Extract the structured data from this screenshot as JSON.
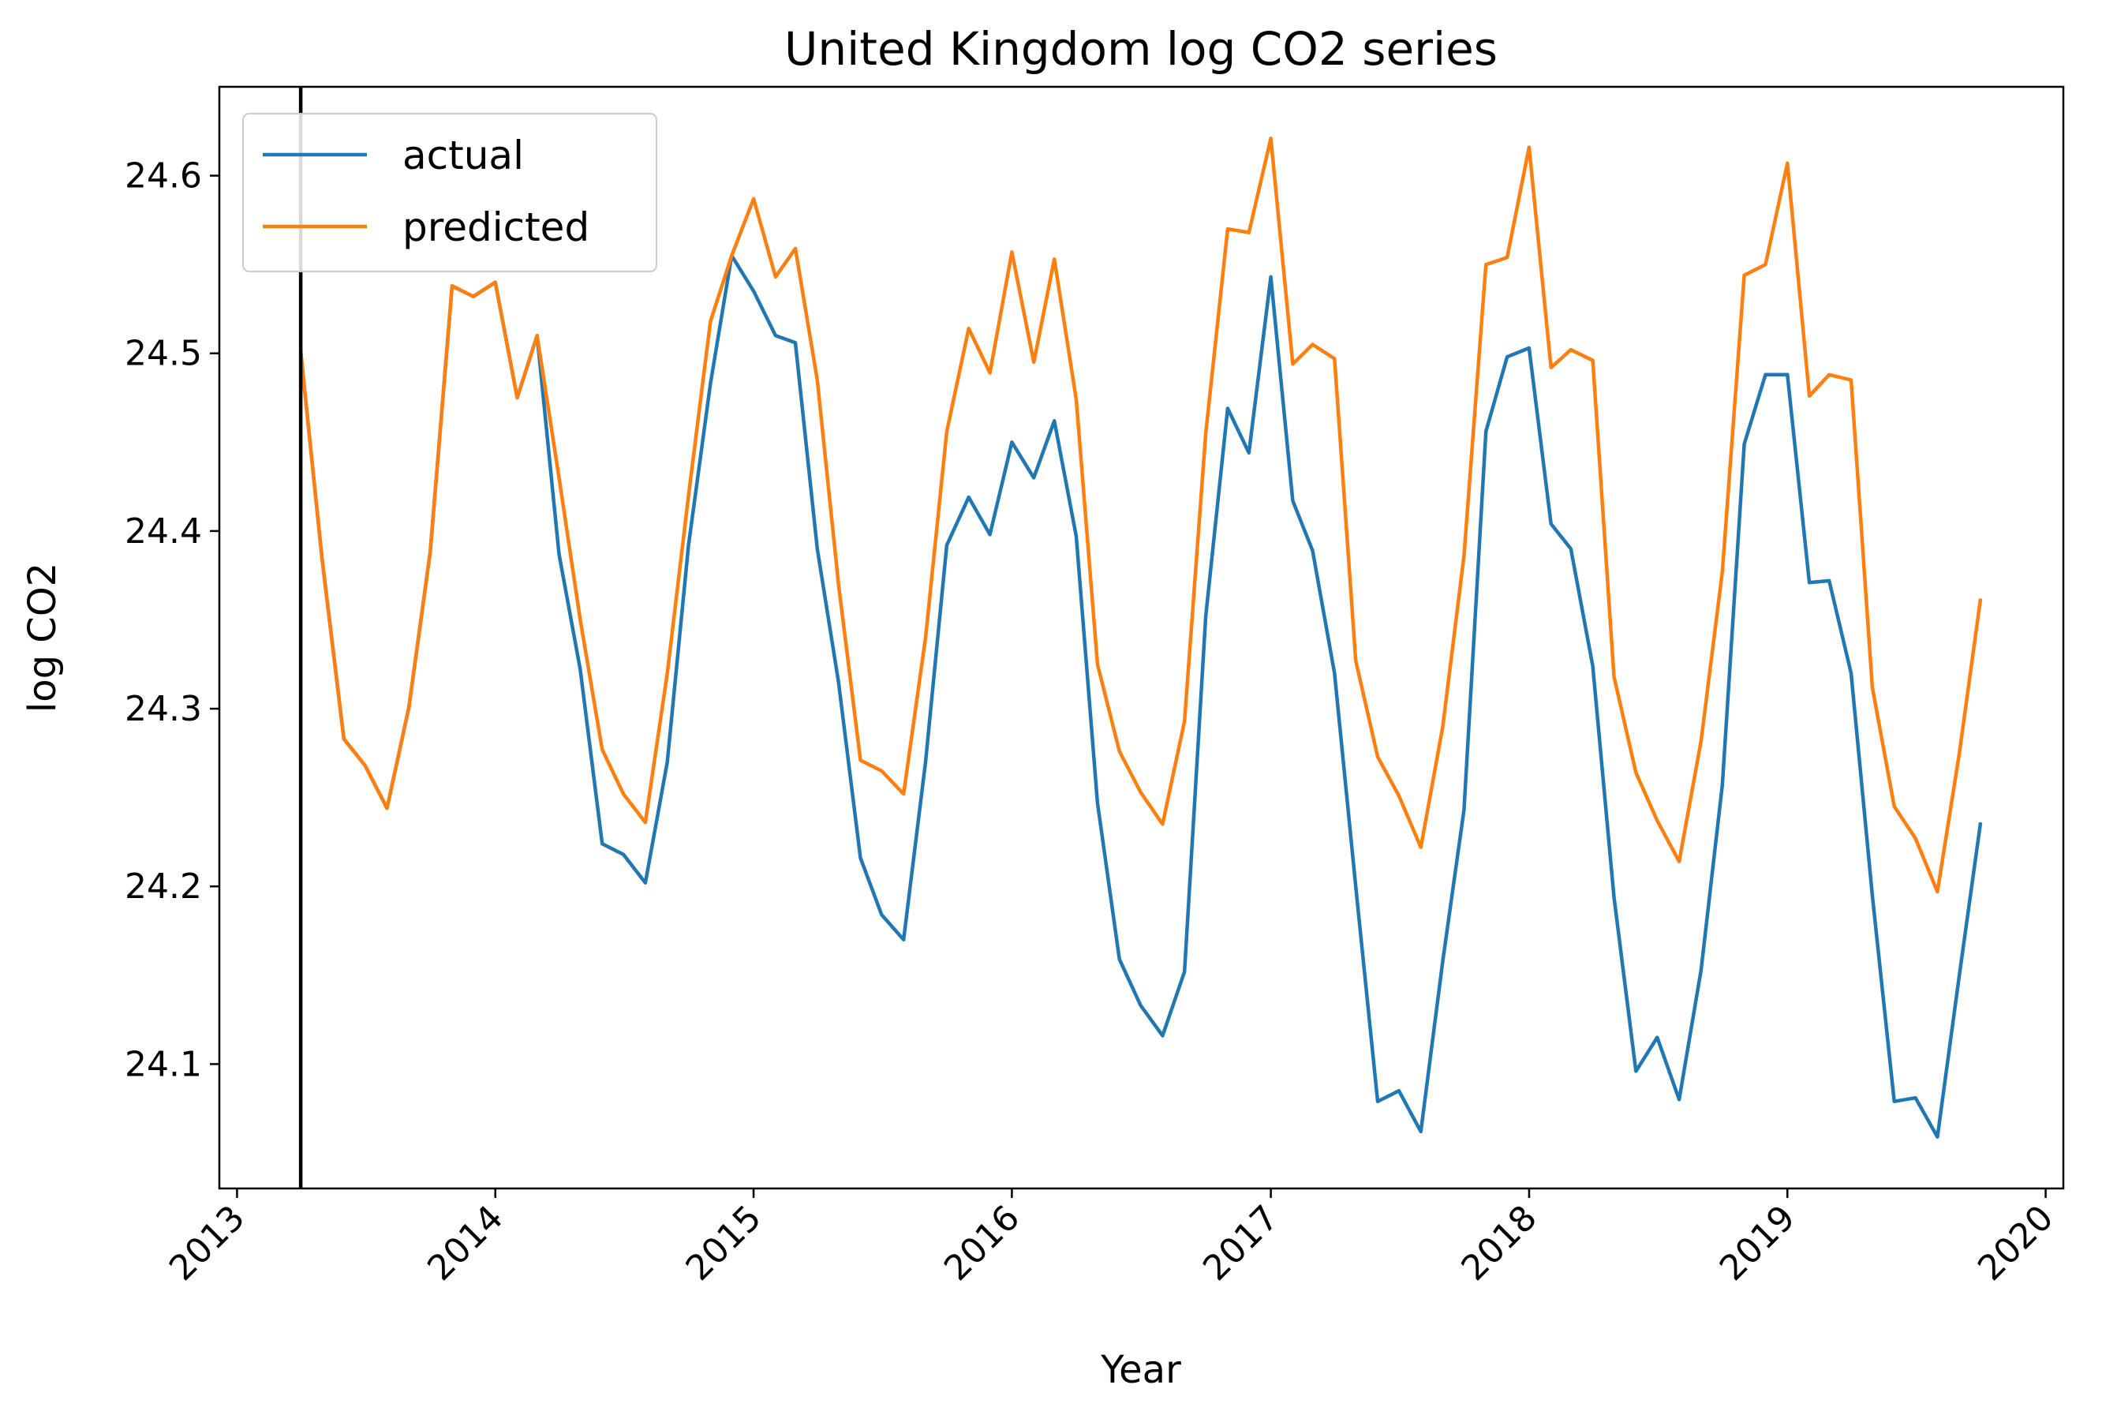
{
  "chart_data": {
    "type": "line",
    "title": "United Kingdom log CO2 series",
    "xlabel": "Year",
    "ylabel": "log CO2",
    "xlim": [
      "2012-12-07",
      "2020-01-26"
    ],
    "ylim": [
      24.03,
      24.65
    ],
    "x_ticks": [
      "2013",
      "2014",
      "2015",
      "2016",
      "2017",
      "2018",
      "2019",
      "2020"
    ],
    "y_ticks": [
      24.1,
      24.2,
      24.3,
      24.4,
      24.5,
      24.6
    ],
    "y_tick_labels": [
      "24.1",
      "24.2",
      "24.3",
      "24.4",
      "24.5",
      "24.6"
    ],
    "vline": "2013-04-01",
    "grid": false,
    "legend": "top-left",
    "x": [
      "2013-04",
      "2013-05",
      "2013-06",
      "2013-07",
      "2013-08",
      "2013-09",
      "2013-10",
      "2013-11",
      "2013-12",
      "2014-01",
      "2014-02",
      "2014-03",
      "2014-04",
      "2014-05",
      "2014-06",
      "2014-07",
      "2014-08",
      "2014-09",
      "2014-10",
      "2014-11",
      "2014-12",
      "2015-01",
      "2015-02",
      "2015-03",
      "2015-04",
      "2015-05",
      "2015-06",
      "2015-07",
      "2015-08",
      "2015-09",
      "2015-10",
      "2015-11",
      "2015-12",
      "2016-01",
      "2016-02",
      "2016-03",
      "2016-04",
      "2016-05",
      "2016-06",
      "2016-07",
      "2016-08",
      "2016-09",
      "2016-10",
      "2016-11",
      "2016-12",
      "2017-01",
      "2017-02",
      "2017-03",
      "2017-04",
      "2017-05",
      "2017-06",
      "2017-07",
      "2017-08",
      "2017-09",
      "2017-10",
      "2017-11",
      "2017-12",
      "2018-01",
      "2018-02",
      "2018-03",
      "2018-04",
      "2018-05",
      "2018-06",
      "2018-07",
      "2018-08",
      "2018-09",
      "2018-10",
      "2018-11",
      "2018-12",
      "2019-01",
      "2019-02",
      "2019-03",
      "2019-04",
      "2019-05",
      "2019-06",
      "2019-07",
      "2019-08",
      "2019-09",
      "2019-10"
    ],
    "series": [
      {
        "name": "actual",
        "color": "#1f77b4",
        "values": [
          24.501,
          24.385,
          24.283,
          24.268,
          24.244,
          24.301,
          24.388,
          24.538,
          24.532,
          24.54,
          24.475,
          24.51,
          24.387,
          24.322,
          24.224,
          24.218,
          24.202,
          24.27,
          24.392,
          24.483,
          24.555,
          24.535,
          24.51,
          24.506,
          24.39,
          24.315,
          24.216,
          24.184,
          24.17,
          24.27,
          24.392,
          24.419,
          24.398,
          24.45,
          24.43,
          24.462,
          24.397,
          24.247,
          24.159,
          24.133,
          24.116,
          24.152,
          24.352,
          24.469,
          24.444,
          24.543,
          24.417,
          24.389,
          24.32,
          24.2,
          24.079,
          24.085,
          24.062,
          24.158,
          24.243,
          24.456,
          24.498,
          24.503,
          24.404,
          24.39,
          24.324,
          24.194,
          24.096,
          24.115,
          24.08,
          24.153,
          24.257,
          24.449,
          24.488,
          24.488,
          24.371,
          24.372,
          24.32,
          24.195,
          24.079,
          24.081,
          24.059,
          24.15,
          24.236
        ]
      },
      {
        "name": "predicted",
        "color": "#ff7f0e",
        "values": [
          24.501,
          24.385,
          24.283,
          24.268,
          24.244,
          24.301,
          24.388,
          24.538,
          24.532,
          24.54,
          24.475,
          24.51,
          24.43,
          24.35,
          24.277,
          24.252,
          24.236,
          24.32,
          24.42,
          24.518,
          24.555,
          24.587,
          24.543,
          24.559,
          24.485,
          24.37,
          24.271,
          24.265,
          24.252,
          24.34,
          24.456,
          24.514,
          24.489,
          24.557,
          24.495,
          24.553,
          24.474,
          24.325,
          24.276,
          24.253,
          24.235,
          24.293,
          24.455,
          24.57,
          24.568,
          24.621,
          24.494,
          24.505,
          24.497,
          24.327,
          24.273,
          24.251,
          24.222,
          24.29,
          24.386,
          24.55,
          24.554,
          24.616,
          24.492,
          24.502,
          24.496,
          24.318,
          24.264,
          24.237,
          24.214,
          24.282,
          24.377,
          24.544,
          24.55,
          24.607,
          24.476,
          24.488,
          24.485,
          24.312,
          24.245,
          24.227,
          24.197,
          24.275,
          24.362
        ]
      }
    ]
  }
}
